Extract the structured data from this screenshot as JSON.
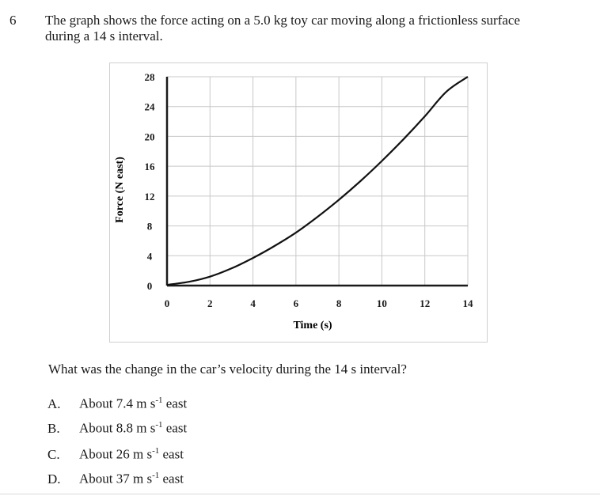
{
  "question": {
    "number": "6",
    "stem": "The graph shows the force acting on a 5.0 kg toy car moving along a frictionless surface during a 14 s interval.",
    "prompt": "What was the change in the car’s velocity during the 14 s interval?"
  },
  "options": [
    {
      "letter": "A.",
      "prefix": "About 7.4 m s",
      "exp": "-1",
      "suffix": " east"
    },
    {
      "letter": "B.",
      "prefix": "About 8.8 m s",
      "exp": "-1",
      "suffix": " east"
    },
    {
      "letter": "C.",
      "prefix": "About 26 m s",
      "exp": "-1",
      "suffix": " east"
    },
    {
      "letter": "D.",
      "prefix": "About 37 m s",
      "exp": "-1",
      "suffix": " east"
    }
  ],
  "chart_data": {
    "type": "line",
    "xlabel": "Time (s)",
    "ylabel": "Force (N east)",
    "xlim": [
      0,
      14
    ],
    "ylim": [
      0,
      28
    ],
    "xticks": [
      "0",
      "2",
      "4",
      "6",
      "8",
      "10",
      "12",
      "14"
    ],
    "yticks": [
      "0",
      "4",
      "8",
      "12",
      "16",
      "20",
      "24",
      "28"
    ],
    "grid": true,
    "series": [
      {
        "x": [
          0,
          1,
          2,
          3,
          4,
          5,
          6,
          7,
          8,
          9,
          10,
          11,
          12,
          13,
          14
        ],
        "y": [
          0.1,
          0.5,
          1.2,
          2.3,
          3.7,
          5.3,
          7.1,
          9.2,
          11.5,
          14.0,
          16.7,
          19.6,
          22.7,
          26.0,
          28.0
        ]
      }
    ]
  }
}
